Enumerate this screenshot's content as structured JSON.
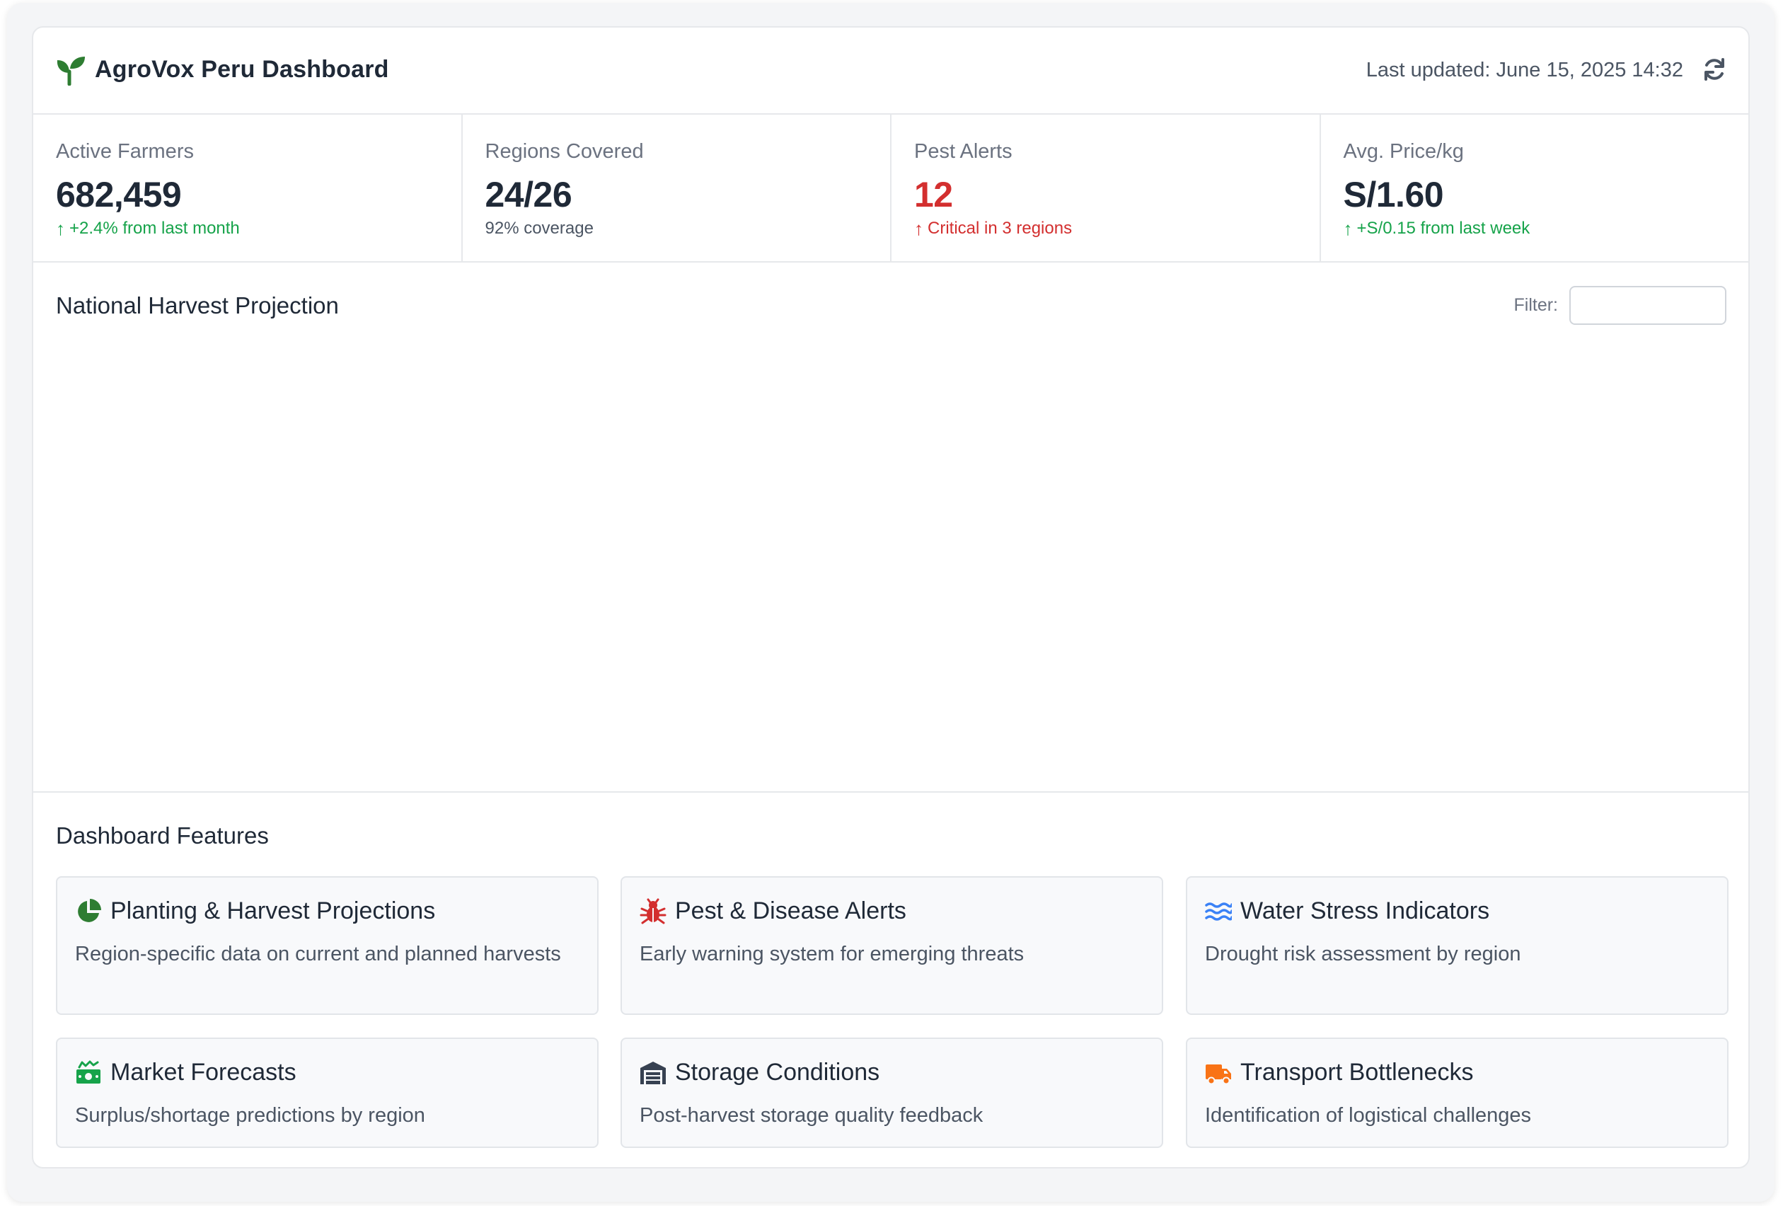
{
  "header": {
    "title": "AgroVox Peru Dashboard",
    "last_updated": "Last updated: June 15, 2025 14:32",
    "logo_icon": "seedling-icon",
    "refresh_icon": "refresh-icon"
  },
  "stats": [
    {
      "label": "Active Farmers",
      "value": "682,459",
      "sub": "+2.4% from last month",
      "trend": "up",
      "color": "green"
    },
    {
      "label": "Regions Covered",
      "value": "24/26",
      "sub": "92% coverage",
      "trend": "none",
      "color": "neutral"
    },
    {
      "label": "Pest Alerts",
      "value": "12",
      "sub": "Critical in 3 regions",
      "trend": "up",
      "color": "red"
    },
    {
      "label": "Avg. Price/kg",
      "value": "S/1.60",
      "sub": "+S/0.15 from last week",
      "trend": "up",
      "color": "green"
    }
  ],
  "chart_section": {
    "title": "National Harvest Projection",
    "filter_label": "Filter:",
    "filter_value": "",
    "filter_placeholder": ""
  },
  "features": {
    "title": "Dashboard Features",
    "items": [
      {
        "title": "Planting & Harvest Projections",
        "desc": "Region-specific data on current and planned harvests",
        "icon": "pie-chart-icon",
        "color": "#2e7d32"
      },
      {
        "title": "Pest & Disease Alerts",
        "desc": "Early warning system for emerging threats",
        "icon": "bug-icon",
        "color": "#d32f2f"
      },
      {
        "title": "Water Stress Indicators",
        "desc": "Drought risk assessment by region",
        "icon": "water-icon",
        "color": "#3b82f6"
      },
      {
        "title": "Market Forecasts",
        "desc": "Surplus/shortage predictions by region",
        "icon": "money-icon",
        "color": "#16a34a"
      },
      {
        "title": "Storage Conditions",
        "desc": "Post-harvest storage quality feedback",
        "icon": "warehouse-icon",
        "color": "#374151"
      },
      {
        "title": "Transport Bottlenecks",
        "desc": "Identification of logistical challenges",
        "icon": "truck-icon",
        "color": "#f97316"
      }
    ]
  },
  "colors": {
    "accent_green": "#2e7d32",
    "positive": "#16a34a",
    "alert_red": "#d32f2f"
  }
}
